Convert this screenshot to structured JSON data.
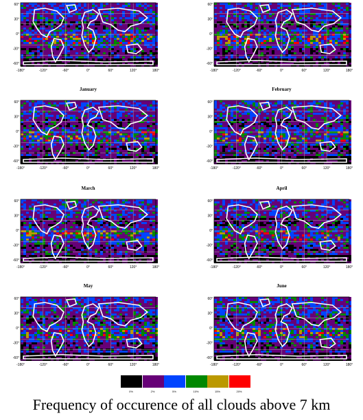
{
  "figure": {
    "title": "Frequency of occurence of all clouds above 7 km",
    "panels": [
      {
        "label": ""
      },
      {
        "label": ""
      },
      {
        "label": "January"
      },
      {
        "label": "February"
      },
      {
        "label": "March"
      },
      {
        "label": "April"
      },
      {
        "label": "May"
      },
      {
        "label": "June"
      }
    ],
    "axes": {
      "lat_ticks": [
        "60°",
        "30°",
        "0°",
        "-30°",
        "-60°"
      ],
      "lon_ticks_left": [
        "-180°",
        "-120°",
        "-60°",
        "0°",
        "60°",
        "120°",
        "180°"
      ],
      "lon_ticks_right": [
        "-180°",
        "-120°",
        "-60°",
        "0°",
        "60°",
        "120°",
        "180°"
      ]
    },
    "colorbar": {
      "colors": [
        "#000000",
        "#660077",
        "#0044ff",
        "#008800",
        "#bb9900",
        "#ff0000"
      ],
      "labels": [
        "0%",
        "2%",
        "5%",
        "10%",
        "15%",
        "20%"
      ]
    }
  }
}
